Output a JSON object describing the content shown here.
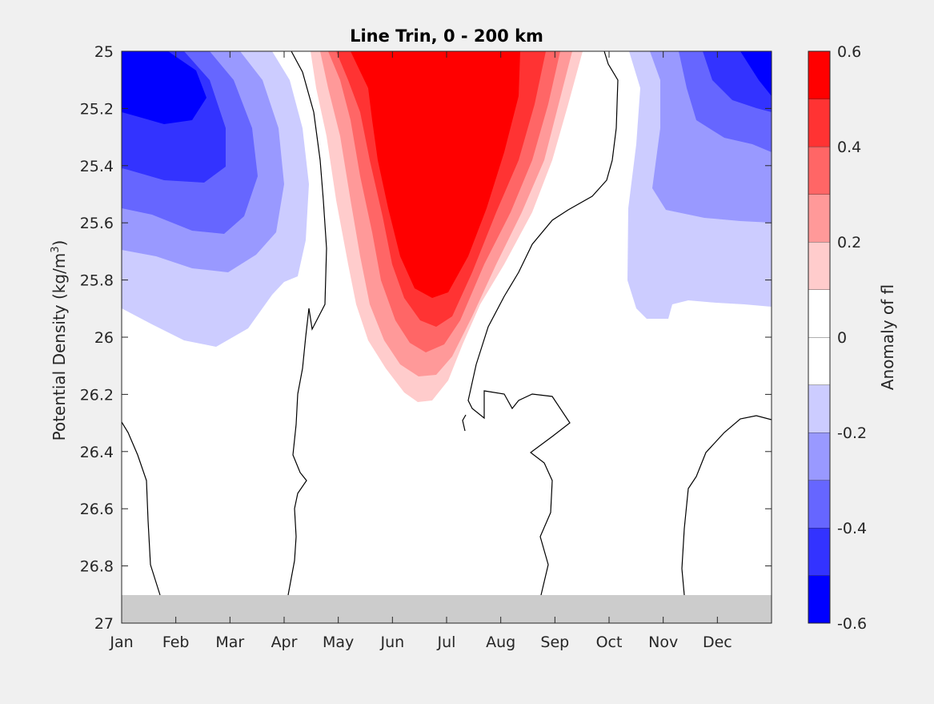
{
  "chart_data": {
    "type": "contour",
    "title": "Line Trin, 0 - 200 km",
    "ylabel_main": "Potential Density (kg/m",
    "ylabel_sup": "3",
    "ylabel_close": ")",
    "colorbar_label": "Anomaly of fl",
    "x_ticks": [
      "Jan",
      "Feb",
      "Mar",
      "Apr",
      "May",
      "Jun",
      "Jul",
      "Aug",
      "Sep",
      "Oct",
      "Nov",
      "Dec"
    ],
    "y_ticks": [
      "25",
      "25.2",
      "25.4",
      "25.6",
      "25.8",
      "26",
      "26.2",
      "26.4",
      "26.6",
      "26.8",
      "27"
    ],
    "y_range": [
      25,
      27
    ],
    "y_reversed": true,
    "colorbar_ticks": [
      "0.6",
      "0.4",
      "0.2",
      "0",
      "-0.2",
      "-0.4",
      "-0.6"
    ],
    "colorbar_range": [
      -0.6,
      0.6
    ],
    "contour_levels": [
      -0.6,
      -0.5,
      -0.4,
      -0.3,
      -0.2,
      -0.1,
      0,
      0.1,
      0.2,
      0.3,
      0.4,
      0.5,
      0.6
    ],
    "fill_colors": {
      "-0.6": "#0000ff",
      "-0.5": "#3333ff",
      "-0.4": "#6666ff",
      "-0.3": "#9999ff",
      "-0.2": "#ccccff",
      "0": "#ffffff",
      "0.2": "#ffcccc",
      "0.3": "#ff9999",
      "0.4": "#ff6666",
      "0.5": "#ff3333",
      "0.6": "#ff0000"
    },
    "zero_contour_color": "#000000",
    "masked_region_y": [
      26.9,
      27
    ],
    "masked_color": "#cccccc",
    "grid": false
  }
}
